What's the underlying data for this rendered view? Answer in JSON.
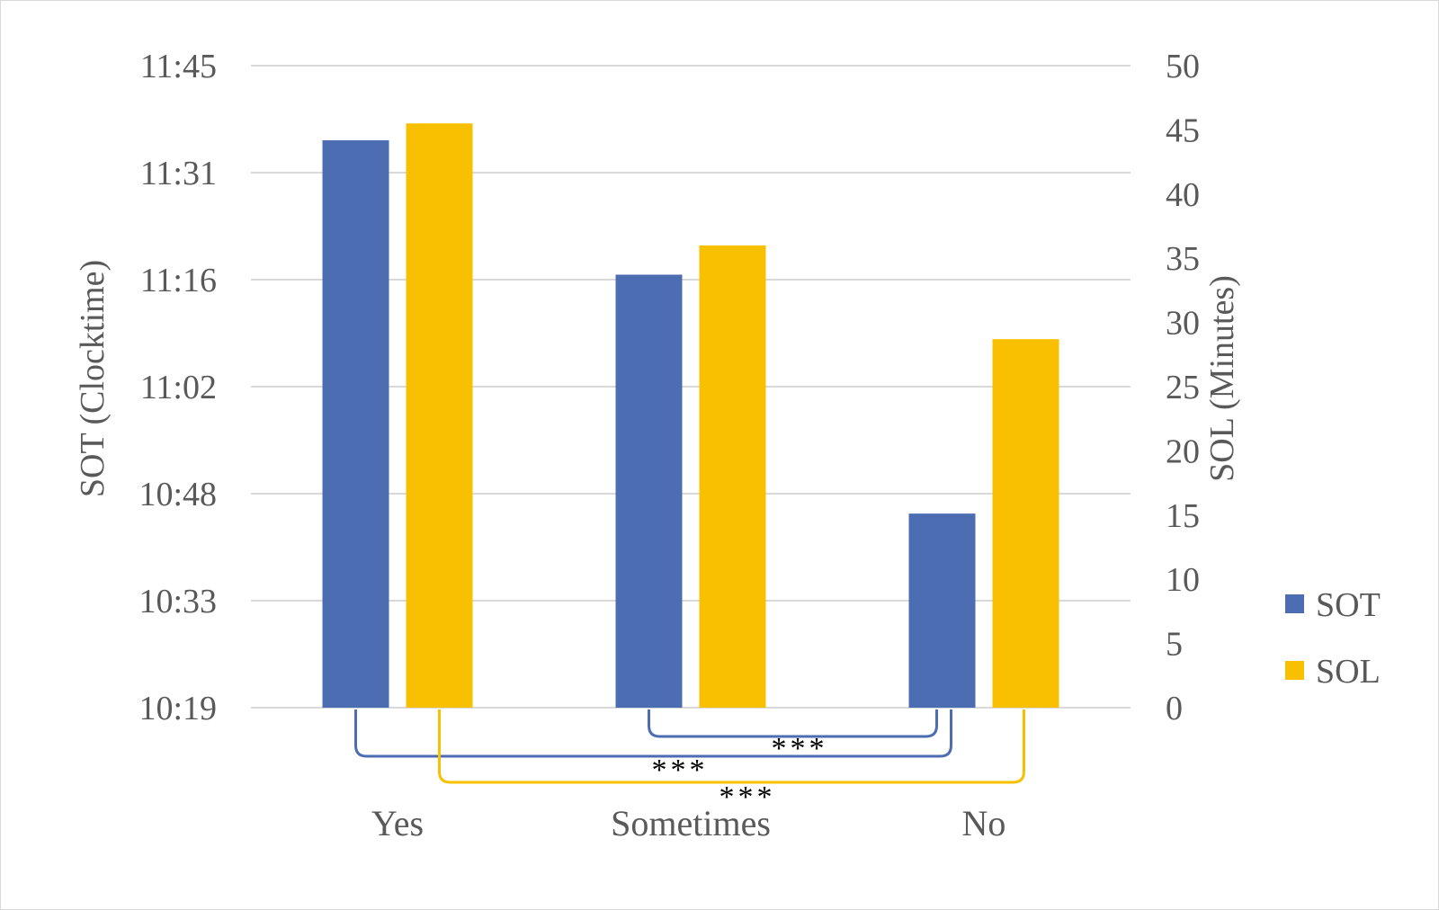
{
  "chart_data": {
    "type": "bar",
    "categories": [
      "Yes",
      "Sometimes",
      "No"
    ],
    "series": [
      {
        "name": "SOT",
        "axis": "left",
        "color": "#4d6db3",
        "values": [
          "11:35",
          "11:17",
          "10:45"
        ]
      },
      {
        "name": "SOL",
        "axis": "right",
        "color": "#f9c002",
        "values": [
          45.5,
          36,
          28.7
        ]
      }
    ],
    "left_axis": {
      "label": "SOT (Clocktime)",
      "ticks": [
        "10:19",
        "10:33",
        "10:48",
        "11:02",
        "11:16",
        "11:31",
        "11:45"
      ],
      "range": [
        "10:19",
        "11:45"
      ]
    },
    "right_axis": {
      "label": "SOL (Minutes)",
      "ticks": [
        "0",
        "5",
        "10",
        "15",
        "20",
        "25",
        "30",
        "35",
        "40",
        "45",
        "50"
      ],
      "range": [
        0,
        50
      ]
    },
    "grid": true,
    "legend": {
      "position": "right",
      "entries": [
        "SOT",
        "SOL"
      ]
    },
    "annotations": [
      {
        "text": "***",
        "series": "SOT",
        "from": "Sometimes",
        "to": "No"
      },
      {
        "text": "***",
        "series": "SOT",
        "from": "Yes",
        "to": "No"
      },
      {
        "text": "***",
        "series": "SOL",
        "from": "Yes",
        "to": "No"
      }
    ]
  }
}
